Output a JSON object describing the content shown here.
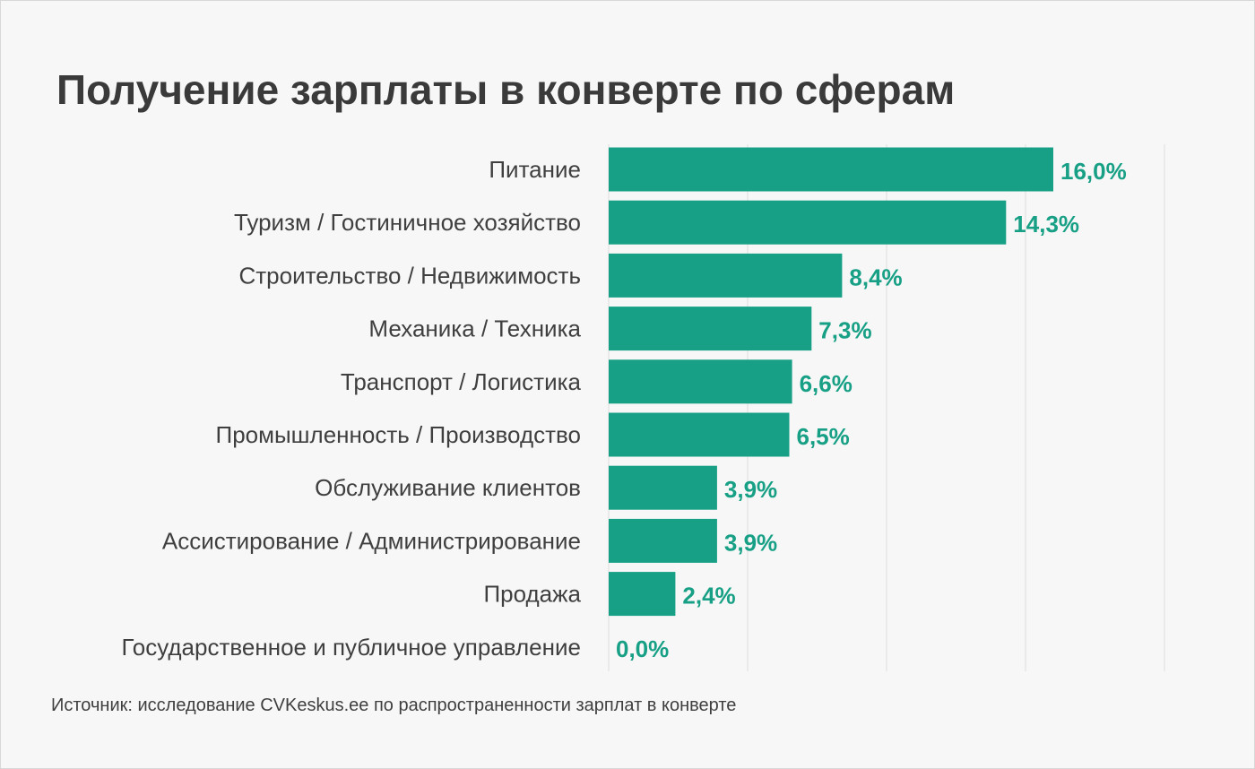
{
  "title": "Получение зарплаты в конверте по сферам",
  "source": "Источник: исследование CVKeskus.ee по распространенности зарплат в конверте",
  "colors": {
    "bar": "#17a085",
    "value_label": "#17a085",
    "category_label": "#3f3f3f",
    "grid": "#dcdcdc",
    "background": "#f7f7f7"
  },
  "chart_data": {
    "type": "bar",
    "orientation": "horizontal",
    "title": "Получение зарплаты в конверте по сферам",
    "categories": [
      "Питание",
      "Туризм / Гостиничное хозяйство",
      "Строительство / Недвижимость",
      "Механика / Техника",
      "Транспорт / Логистика",
      "Промышленность / Производство",
      "Обслуживание клиентов",
      "Ассистирование / Администрирование",
      "Продажа",
      "Государственное и публичное управление"
    ],
    "values": [
      16.0,
      14.3,
      8.4,
      7.3,
      6.6,
      6.5,
      3.9,
      3.9,
      2.4,
      0.0
    ],
    "value_labels": [
      "16,0%",
      "14,3%",
      "8,4%",
      "7,3%",
      "6,6%",
      "6,5%",
      "3,9%",
      "3,9%",
      "2,4%",
      "0,0%"
    ],
    "xlim": [
      0,
      20
    ],
    "grid": true,
    "grid_step": 5,
    "legend": "none"
  }
}
